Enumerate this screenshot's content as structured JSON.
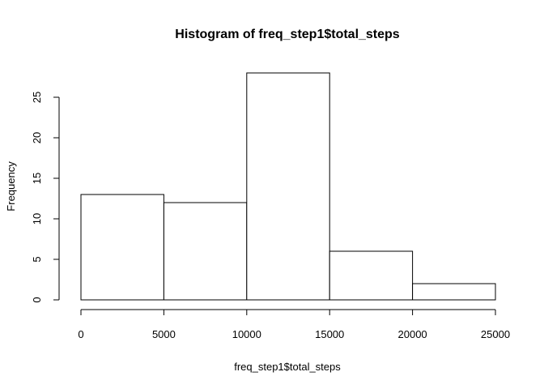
{
  "chart_data": {
    "type": "bar",
    "title": "Histogram of freq_step1$total_steps",
    "xlabel": "freq_step1$total_steps",
    "ylabel": "Frequency",
    "bins": [
      {
        "from": 0,
        "to": 5000,
        "count": 13
      },
      {
        "from": 5000,
        "to": 10000,
        "count": 12
      },
      {
        "from": 10000,
        "to": 15000,
        "count": 28
      },
      {
        "from": 15000,
        "to": 20000,
        "count": 6
      },
      {
        "from": 20000,
        "to": 25000,
        "count": 2
      }
    ],
    "xlim": [
      0,
      25000
    ],
    "ylim": [
      0,
      28
    ],
    "x_ticks": [
      0,
      5000,
      10000,
      15000,
      20000,
      25000
    ],
    "x_tick_labels": [
      "0",
      "5000",
      "10000",
      "15000",
      "20000",
      "25000"
    ],
    "y_ticks": [
      0,
      5,
      10,
      15,
      20,
      25
    ],
    "y_tick_labels": [
      "0",
      "5",
      "10",
      "15",
      "20",
      "25"
    ],
    "grid": false,
    "legend": "none",
    "bar_fill": "#ffffff",
    "bar_stroke": "#000000"
  }
}
